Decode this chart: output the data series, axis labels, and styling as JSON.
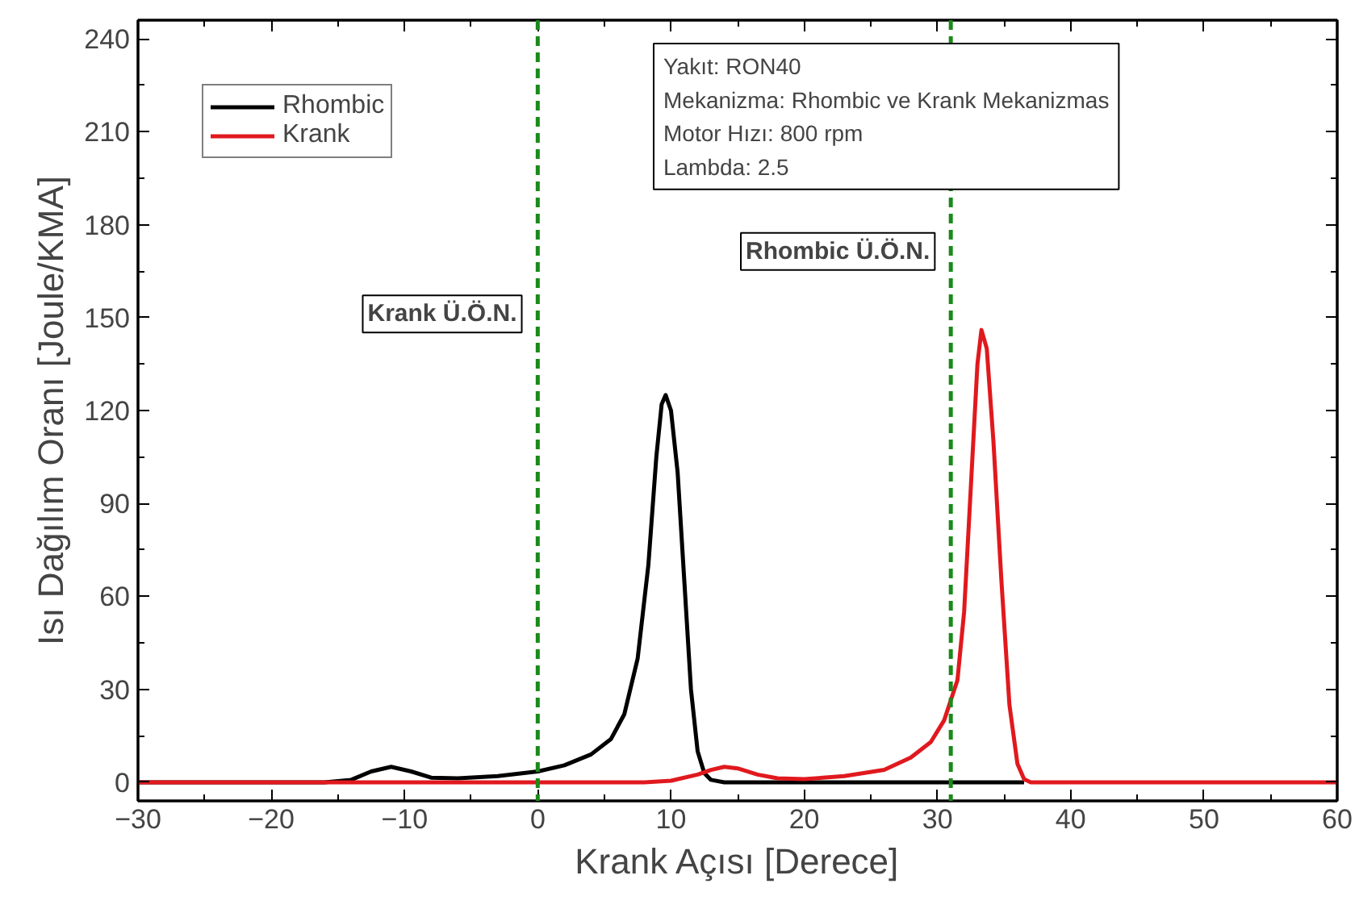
{
  "chart_data": {
    "type": "line",
    "xlabel": "Krank Açısı [Derece]",
    "ylabel": "Isı Dağılım Oranı [Joule/KMA]",
    "xlim": [
      -30,
      60
    ],
    "xticks": [
      -30,
      -20,
      -10,
      0,
      10,
      20,
      30,
      40,
      50,
      60
    ],
    "ylim": [
      -6,
      246
    ],
    "yticks": [
      0,
      30,
      60,
      90,
      120,
      150,
      180,
      210,
      240
    ],
    "grid": false,
    "legend": "top left",
    "line_style": "solid",
    "marker": "none",
    "series": [
      {
        "name": "Rhombic",
        "color": "#000000",
        "x": [
          -30,
          -16,
          -14,
          -12.5,
          -11,
          -9.5,
          -8,
          -6,
          -3,
          0,
          2,
          4,
          5.5,
          6.5,
          7.5,
          8.3,
          8.9,
          9.3,
          9.6,
          10,
          10.5,
          11,
          11.5,
          12,
          12.5,
          13,
          14,
          36.5
        ],
        "values": [
          0,
          0,
          0.8,
          3.5,
          5,
          3.5,
          1.5,
          1.3,
          2,
          3.5,
          5.5,
          9,
          14,
          22,
          40,
          70,
          105,
          122,
          125,
          120,
          100,
          65,
          30,
          10,
          3,
          0.8,
          0,
          0
        ]
      },
      {
        "name": "Krank",
        "color": "#e0191e",
        "x": [
          -30,
          8,
          10,
          12,
          13,
          14,
          15,
          16.5,
          18,
          20,
          23,
          26,
          28,
          29.5,
          30.5,
          31.5,
          32,
          32.5,
          33,
          33.3,
          33.7,
          34.2,
          34.8,
          35.4,
          36,
          36.5,
          37,
          60
        ],
        "values": [
          0,
          0,
          0.5,
          2.5,
          4,
          5,
          4.5,
          2.5,
          1.3,
          1,
          2,
          4,
          8,
          13,
          20,
          33,
          55,
          95,
          135,
          146,
          140,
          110,
          65,
          25,
          6,
          1,
          0,
          0
        ]
      }
    ],
    "ref_lines": [
      {
        "axis": "x",
        "value": 0,
        "label": "Krank Ü.Ö.N.",
        "color": "#1a8a1a",
        "line_style": "dashed"
      },
      {
        "axis": "x",
        "value": 31,
        "label": "Rhombic Ü.Ö.N.",
        "color": "#1a8a1a",
        "line_style": "dashed"
      }
    ],
    "annotations": [
      "Yakıt: RON40",
      "Mekanizma: Rhombic ve Krank Mekanizmas",
      "Motor Hızı: 800 rpm",
      "Lambda: 2.5"
    ]
  }
}
